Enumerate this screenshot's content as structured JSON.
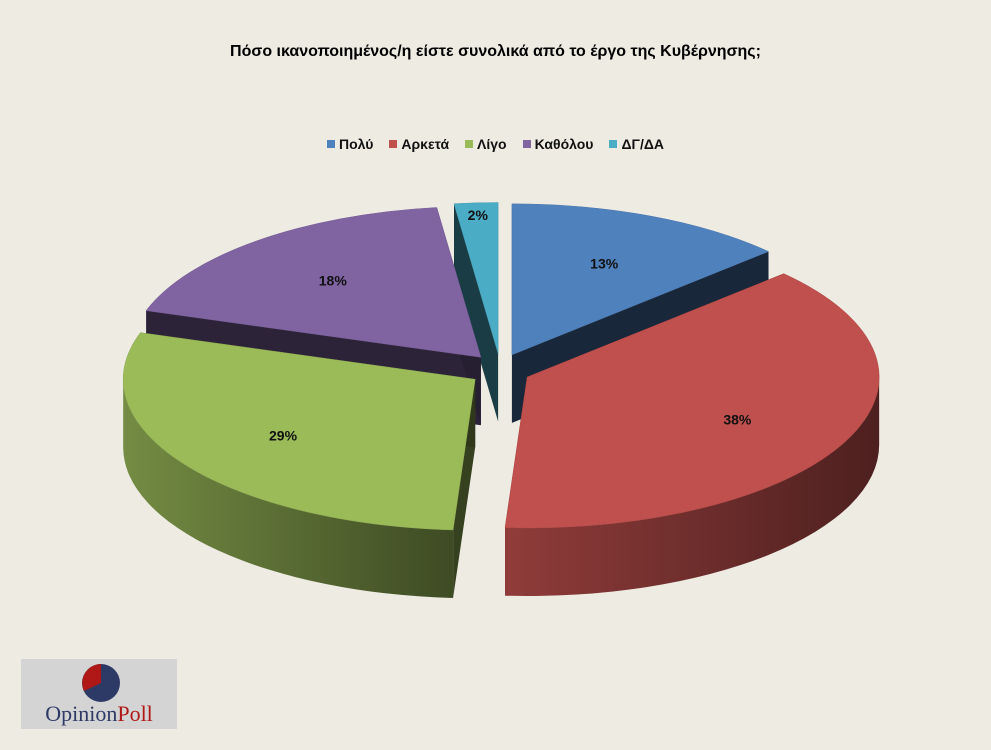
{
  "colors": {
    "background": "#eeebe3",
    "logo_red": "#b01818",
    "logo_blue": "#2e3a66"
  },
  "chart_data": {
    "type": "pie",
    "style": "3d-exploded",
    "title": "Πόσο ικανοποιημένος/η είστε συνολικά από  το έργο της Κυβέρνησης;",
    "legend_position": "top",
    "categories": [
      "Πολύ",
      "Αρκετά",
      "Λίγο",
      "Καθόλου",
      "ΔΓ/ΔΑ"
    ],
    "values": [
      13,
      38,
      29,
      18,
      2
    ],
    "labels": [
      "13%",
      "38%",
      "29%",
      "18%",
      "2%"
    ],
    "colors": [
      "#4f81bd",
      "#c0504d",
      "#9bbb59",
      "#8064a2",
      "#4bacc6"
    ]
  },
  "logo": {
    "text_a": "Opinion",
    "text_b": "Poll"
  }
}
